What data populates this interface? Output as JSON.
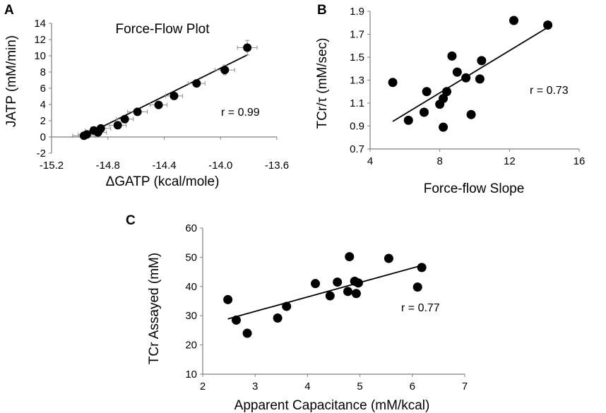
{
  "chart_data": [
    {
      "panel": "A",
      "type": "scatter",
      "title": "Force-Flow Plot",
      "xlabel": "ΔGATP (kcal/mole)",
      "ylabel": "JATP (mM/min)",
      "xlim": [
        -15.2,
        -13.6
      ],
      "ylim": [
        -2,
        14
      ],
      "xticks": [
        -15.2,
        -14.8,
        -14.4,
        -14.0,
        -13.6
      ],
      "xtick_labels": [
        "-15.2",
        "-14.8",
        "-14.4",
        "-14.0",
        "-13.6"
      ],
      "yticks": [
        -2,
        0,
        2,
        4,
        6,
        8,
        10,
        12,
        14
      ],
      "ytick_labels": [
        "-2",
        "0",
        "2",
        "4",
        "6",
        "8",
        "10",
        "12",
        "14"
      ],
      "annotation": "r = 0.99",
      "points": [
        {
          "x": -14.97,
          "y": 0.15,
          "xerr": 0.08,
          "yerr": 0.3
        },
        {
          "x": -14.95,
          "y": 0.3,
          "xerr": 0.06,
          "yerr": 0.3
        },
        {
          "x": -14.9,
          "y": 0.8,
          "xerr": 0.06,
          "yerr": 0.3
        },
        {
          "x": -14.87,
          "y": 0.55,
          "xerr": 0.06,
          "yerr": 0.3
        },
        {
          "x": -14.85,
          "y": 1.05,
          "xerr": 0.07,
          "yerr": 0.3
        },
        {
          "x": -14.73,
          "y": 1.45,
          "xerr": 0.06,
          "yerr": 0.3
        },
        {
          "x": -14.68,
          "y": 2.2,
          "xerr": 0.06,
          "yerr": 0.3
        },
        {
          "x": -14.59,
          "y": 3.1,
          "xerr": 0.07,
          "yerr": 0.35
        },
        {
          "x": -14.44,
          "y": 3.95,
          "xerr": 0.06,
          "yerr": 0.3
        },
        {
          "x": -14.33,
          "y": 5.05,
          "xerr": 0.06,
          "yerr": 0.35
        },
        {
          "x": -14.17,
          "y": 6.6,
          "xerr": 0.06,
          "yerr": 0.4
        },
        {
          "x": -13.97,
          "y": 8.25,
          "xerr": 0.07,
          "yerr": 0.6
        },
        {
          "x": -13.81,
          "y": 11.0,
          "xerr": 0.07,
          "yerr": 0.9
        }
      ],
      "fit_line": {
        "x": [
          -14.98,
          -13.81
        ],
        "y": [
          0.05,
          10.1
        ]
      }
    },
    {
      "panel": "B",
      "type": "scatter",
      "xlabel": "Force-flow Slope",
      "ylabel": "TCr/τ (mM/sec)",
      "xlim": [
        4,
        16
      ],
      "ylim": [
        0.7,
        1.9
      ],
      "xticks": [
        4,
        8,
        12,
        16
      ],
      "xtick_labels": [
        "4",
        "8",
        "12",
        "16"
      ],
      "yticks": [
        0.7,
        0.9,
        1.1,
        1.3,
        1.5,
        1.7,
        1.9
      ],
      "ytick_labels": [
        "0.7",
        "0.9",
        "1.1",
        "1.3",
        "1.5",
        "1.7",
        "1.9"
      ],
      "annotation": "r = 0.73",
      "points": [
        {
          "x": 5.3,
          "y": 1.28
        },
        {
          "x": 6.2,
          "y": 0.95
        },
        {
          "x": 7.1,
          "y": 1.02
        },
        {
          "x": 7.25,
          "y": 1.2
        },
        {
          "x": 8.0,
          "y": 1.09
        },
        {
          "x": 8.2,
          "y": 1.14
        },
        {
          "x": 8.2,
          "y": 0.89
        },
        {
          "x": 8.4,
          "y": 1.2
        },
        {
          "x": 8.7,
          "y": 1.51
        },
        {
          "x": 9.0,
          "y": 1.37
        },
        {
          "x": 9.5,
          "y": 1.32
        },
        {
          "x": 9.8,
          "y": 1.0
        },
        {
          "x": 10.3,
          "y": 1.31
        },
        {
          "x": 10.4,
          "y": 1.47
        },
        {
          "x": 12.25,
          "y": 1.82
        },
        {
          "x": 14.2,
          "y": 1.78
        }
      ],
      "fit_line": {
        "x": [
          5.3,
          14.2
        ],
        "y": [
          0.94,
          1.76
        ]
      }
    },
    {
      "panel": "C",
      "type": "scatter",
      "xlabel": "Apparent Capacitance (mM/kcal)",
      "ylabel": "TCr Assayed (mM)",
      "xlim": [
        2,
        7
      ],
      "ylim": [
        10,
        60
      ],
      "xticks": [
        2,
        3,
        4,
        5,
        6,
        7
      ],
      "xtick_labels": [
        "2",
        "3",
        "4",
        "5",
        "6",
        "7"
      ],
      "yticks": [
        10,
        20,
        30,
        40,
        50,
        60
      ],
      "ytick_labels": [
        "10",
        "20",
        "30",
        "40",
        "50",
        "60"
      ],
      "annotation": "r = 0.77",
      "points": [
        {
          "x": 2.48,
          "y": 35.5
        },
        {
          "x": 2.64,
          "y": 28.5
        },
        {
          "x": 2.85,
          "y": 24.0
        },
        {
          "x": 3.43,
          "y": 29.2
        },
        {
          "x": 3.6,
          "y": 33.2
        },
        {
          "x": 4.15,
          "y": 41.0
        },
        {
          "x": 4.43,
          "y": 36.8
        },
        {
          "x": 4.57,
          "y": 41.5
        },
        {
          "x": 4.77,
          "y": 38.3
        },
        {
          "x": 4.8,
          "y": 50.2
        },
        {
          "x": 4.9,
          "y": 41.8
        },
        {
          "x": 4.93,
          "y": 37.6
        },
        {
          "x": 4.97,
          "y": 41.2
        },
        {
          "x": 5.55,
          "y": 49.6
        },
        {
          "x": 6.1,
          "y": 39.8
        },
        {
          "x": 6.18,
          "y": 46.5
        }
      ],
      "fit_line": {
        "x": [
          2.48,
          6.18
        ],
        "y": [
          28.9,
          47.2
        ]
      }
    }
  ]
}
